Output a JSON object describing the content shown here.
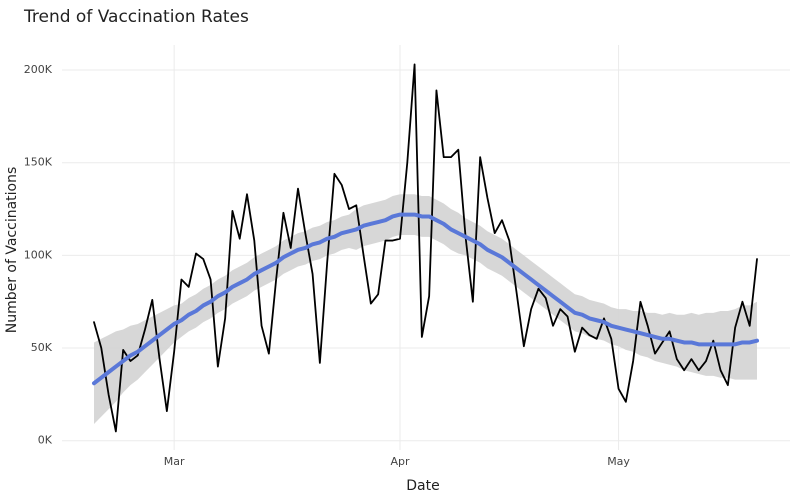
{
  "chart_data": {
    "type": "line",
    "title": "Trend of Vaccination Rates",
    "x_label": "Date",
    "y_label": "Number of Vaccinations",
    "categories": [
      null,
      null,
      null,
      null,
      null,
      null,
      null,
      null,
      null,
      null,
      null,
      "Mar",
      null,
      null,
      null,
      null,
      null,
      null,
      null,
      null,
      null,
      null,
      null,
      null,
      null,
      null,
      null,
      null,
      null,
      null,
      null,
      null,
      null,
      null,
      null,
      null,
      null,
      null,
      null,
      null,
      null,
      null,
      "Apr",
      null,
      null,
      null,
      null,
      null,
      null,
      null,
      null,
      null,
      null,
      null,
      null,
      null,
      null,
      null,
      null,
      null,
      null,
      null,
      null,
      null,
      null,
      null,
      null,
      null,
      null,
      null,
      null,
      null,
      "May",
      null,
      null,
      null,
      null,
      null,
      null,
      null,
      null,
      null,
      null,
      null,
      null,
      null,
      null,
      null,
      null,
      null,
      null,
      null
    ],
    "series": [
      {
        "color": "#000000",
        "values": [
          64000,
          50000,
          25000,
          5000,
          49000,
          43000,
          46000,
          60000,
          76000,
          44000,
          16000,
          48000,
          87000,
          83000,
          101000,
          98000,
          87000,
          40000,
          66000,
          124000,
          109000,
          133000,
          108000,
          62000,
          47000,
          87000,
          123000,
          104000,
          136000,
          112000,
          90000,
          42000,
          96000,
          144000,
          138000,
          125000,
          127000,
          100000,
          74000,
          79000,
          108000,
          108000,
          109000,
          150000,
          203000,
          56000,
          78000,
          189000,
          153000,
          153000,
          157000,
          110000,
          75000,
          153000,
          131000,
          112000,
          119000,
          108000,
          80000,
          51000,
          71000,
          82000,
          77000,
          62000,
          71000,
          67000,
          48000,
          61000,
          57000,
          55000,
          66000,
          55000,
          28000,
          21000,
          43000,
          75000,
          62000,
          47000,
          53000,
          59000,
          44000,
          38000,
          44000,
          38000,
          43000,
          54000,
          38000,
          30000,
          61000,
          75000,
          62000,
          98000
        ]
      },
      {
        "color": "#5a78d8",
        "values": [
          31000,
          34000,
          37000,
          40000,
          43000,
          46000,
          48000,
          51000,
          54000,
          57000,
          60000,
          63000,
          65000,
          68000,
          70000,
          73000,
          75000,
          78000,
          80000,
          83000,
          85000,
          87000,
          90000,
          92000,
          94000,
          96000,
          99000,
          101000,
          103000,
          104000,
          106000,
          107000,
          109000,
          110000,
          112000,
          113000,
          114000,
          116000,
          117000,
          118000,
          119000,
          121000,
          122000,
          122000,
          122000,
          121000,
          121000,
          119000,
          117000,
          114000,
          112000,
          110000,
          108000,
          106000,
          103000,
          101000,
          99000,
          96000,
          93000,
          90000,
          87000,
          84000,
          81000,
          78000,
          75000,
          72000,
          69000,
          68000,
          66000,
          65000,
          64000,
          62000,
          61000,
          60000,
          59000,
          58000,
          57000,
          56000,
          55000,
          55000,
          54000,
          53000,
          53000,
          52000,
          52000,
          52000,
          52000,
          52000,
          52000,
          53000,
          53000,
          54000
        ]
      }
    ],
    "band": {
      "color": "#d3d3d3",
      "lower": [
        9000,
        13000,
        17000,
        21000,
        26000,
        30000,
        33000,
        37000,
        41000,
        45000,
        49000,
        53000,
        56000,
        59000,
        61000,
        64000,
        66000,
        69000,
        71000,
        74000,
        76000,
        78000,
        81000,
        83000,
        85000,
        87000,
        90000,
        92000,
        94000,
        95000,
        97000,
        98000,
        100000,
        101000,
        103000,
        104000,
        103000,
        105000,
        106000,
        107000,
        108000,
        110000,
        111000,
        111000,
        111000,
        110000,
        110000,
        108000,
        106000,
        103000,
        101000,
        100000,
        98000,
        96000,
        93000,
        91000,
        89000,
        86000,
        83000,
        80000,
        77000,
        74000,
        71000,
        68000,
        65000,
        62000,
        59000,
        58000,
        56000,
        55000,
        54000,
        52000,
        51000,
        49000,
        48000,
        46000,
        45000,
        43000,
        42000,
        41000,
        40000,
        38000,
        37000,
        36000,
        35000,
        35000,
        34000,
        34000,
        33000,
        33000,
        33000,
        33000
      ],
      "upper": [
        53000,
        55000,
        57000,
        59000,
        60000,
        62000,
        63000,
        65000,
        67000,
        69000,
        71000,
        73000,
        74000,
        77000,
        79000,
        82000,
        84000,
        87000,
        89000,
        92000,
        94000,
        96000,
        99000,
        101000,
        103000,
        105000,
        108000,
        110000,
        112000,
        113000,
        115000,
        116000,
        118000,
        119000,
        121000,
        122000,
        125000,
        127000,
        128000,
        129000,
        130000,
        132000,
        133000,
        133000,
        133000,
        132000,
        132000,
        130000,
        128000,
        125000,
        123000,
        120000,
        118000,
        116000,
        113000,
        111000,
        109000,
        106000,
        103000,
        100000,
        97000,
        94000,
        91000,
        88000,
        85000,
        82000,
        79000,
        78000,
        76000,
        75000,
        74000,
        72000,
        71000,
        71000,
        70000,
        70000,
        69000,
        69000,
        68000,
        69000,
        68000,
        68000,
        69000,
        68000,
        69000,
        69000,
        70000,
        70000,
        71000,
        73000,
        73000,
        75000
      ]
    },
    "ylim": [
      -5000,
      213500
    ],
    "yticks": [
      {
        "value": 0,
        "label": "0K"
      },
      {
        "value": 50000,
        "label": "50K"
      },
      {
        "value": 100000,
        "label": "100K"
      },
      {
        "value": 150000,
        "label": "150K"
      },
      {
        "value": 200000,
        "label": "200K"
      }
    ],
    "grid": true
  }
}
